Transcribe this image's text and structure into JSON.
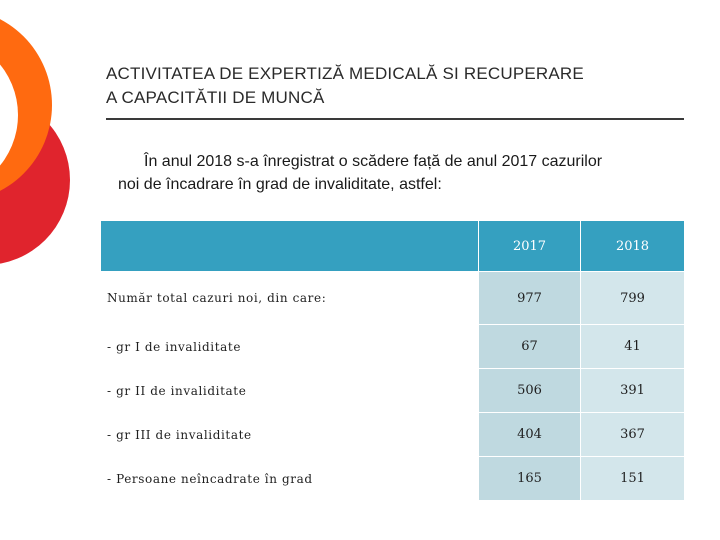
{
  "colors": {
    "accent_orange": "#ff6a10",
    "accent_red": "#e0242d",
    "header_blue": "#35a0c0",
    "cell_2017": "#bfd9e0",
    "cell_2018": "#d3e6eb"
  },
  "title": {
    "line1": "ACTIVITATEA DE EXPERTIZĂ MEDICALĂ SI RECUPERARE",
    "line2": "A CAPACITĂTII DE MUNCĂ"
  },
  "intro": {
    "line1": "În anul 2018 s-a înregistrat o scădere față de anul 2017 cazurilor",
    "line2": "noi de încadrare în grad de invaliditate, astfel:"
  },
  "table": {
    "columns": [
      "",
      "2017",
      "2018"
    ],
    "rows": [
      {
        "label": "Număr total cazuri noi, din care:",
        "y2017": "977",
        "y2018": "799"
      },
      {
        "label": "- gr I de invaliditate",
        "y2017": "67",
        "y2018": "41"
      },
      {
        "label": "- gr II de invaliditate",
        "y2017": "506",
        "y2018": "391"
      },
      {
        "label": "- gr III de invaliditate",
        "y2017": "404",
        "y2018": "367"
      },
      {
        "label": "- Persoane neîncadrate în grad",
        "y2017": "165",
        "y2018": "151"
      }
    ]
  }
}
